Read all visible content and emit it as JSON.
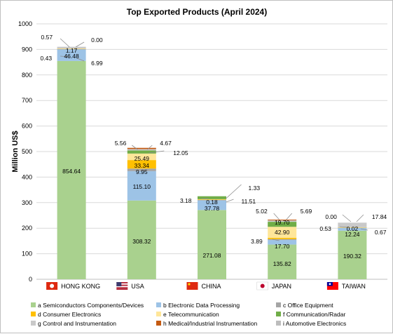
{
  "chart_data": {
    "type": "bar",
    "stacked": true,
    "title": "Top Exported Products (April 2024)",
    "ylabel": "Million US$",
    "xlabel": "",
    "ylim": [
      0,
      1000
    ],
    "yticks": [
      0,
      100,
      200,
      300,
      400,
      500,
      600,
      700,
      800,
      900,
      1000
    ],
    "grid": true,
    "legend_position": "bottom",
    "categories": [
      "HONG KONG",
      "USA",
      "CHINA",
      "JAPAN",
      "TAIWAN"
    ],
    "category_flags": [
      "hk-flag-icon",
      "us-flag-icon",
      "cn-flag-icon",
      "jp-flag-icon",
      "tw-flag-icon"
    ],
    "series": [
      {
        "name": "a Semiconductors Components/Devices",
        "color": "#a9d18e",
        "values": [
          854.64,
          308.32,
          271.08,
          135.82,
          190.32
        ]
      },
      {
        "name": "b Electronic Data Processing",
        "color": "#9dc3e6",
        "values": [
          46.48,
          115.1,
          37.78,
          17.7,
          12.24
        ]
      },
      {
        "name": "c Office Equipment",
        "color": "#a5a5a5",
        "values": [
          0.43,
          9.95,
          3.18,
          3.89,
          0.53
        ]
      },
      {
        "name": "d Consumer Electronics",
        "color": "#ffc000",
        "values": [
          1.17,
          33.34,
          0.18,
          5.02,
          0.02
        ]
      },
      {
        "name": "e Telecommunication",
        "color": "#ffe699",
        "values": [
          0.57,
          25.49,
          1.33,
          42.9,
          0.67
        ]
      },
      {
        "name": "f Communication/Radar",
        "color": "#70ad47",
        "values": [
          0.0,
          12.05,
          11.51,
          19.7,
          0.0
        ]
      },
      {
        "name": "g Control and Instrumentation",
        "color": "#c9c9c9",
        "values": [
          6.99,
          5.56,
          0.0,
          5.69,
          17.84
        ]
      },
      {
        "name": "h Medical/Industrial Instrumentation",
        "color": "#c55a11",
        "values": [
          0.0,
          4.67,
          0.0,
          2.8,
          0.0
        ]
      },
      {
        "name": "i Automotive Electronics",
        "color": "#bdbdbd",
        "values": [
          0.0,
          0.0,
          0.0,
          0.0,
          0.0
        ]
      }
    ],
    "data_labels": [
      [
        "854.64",
        "46.48",
        "0.43",
        "1.17",
        "0.57",
        "0.00",
        "6.99"
      ],
      [
        "308.32",
        "115.10",
        "9.95",
        "33.34",
        "25.49",
        "12.05",
        "5.56",
        "4.67"
      ],
      [
        "271.08",
        "37.78",
        "3.18",
        "0.18",
        "1.33",
        "11.51"
      ],
      [
        "135.82",
        "17.70",
        "3.89",
        "42.90",
        "19.70",
        "5.02",
        "5.69"
      ],
      [
        "190.32",
        "12.24",
        "0.53",
        "0.02",
        "0.00",
        "17.84",
        "0.67"
      ]
    ]
  }
}
